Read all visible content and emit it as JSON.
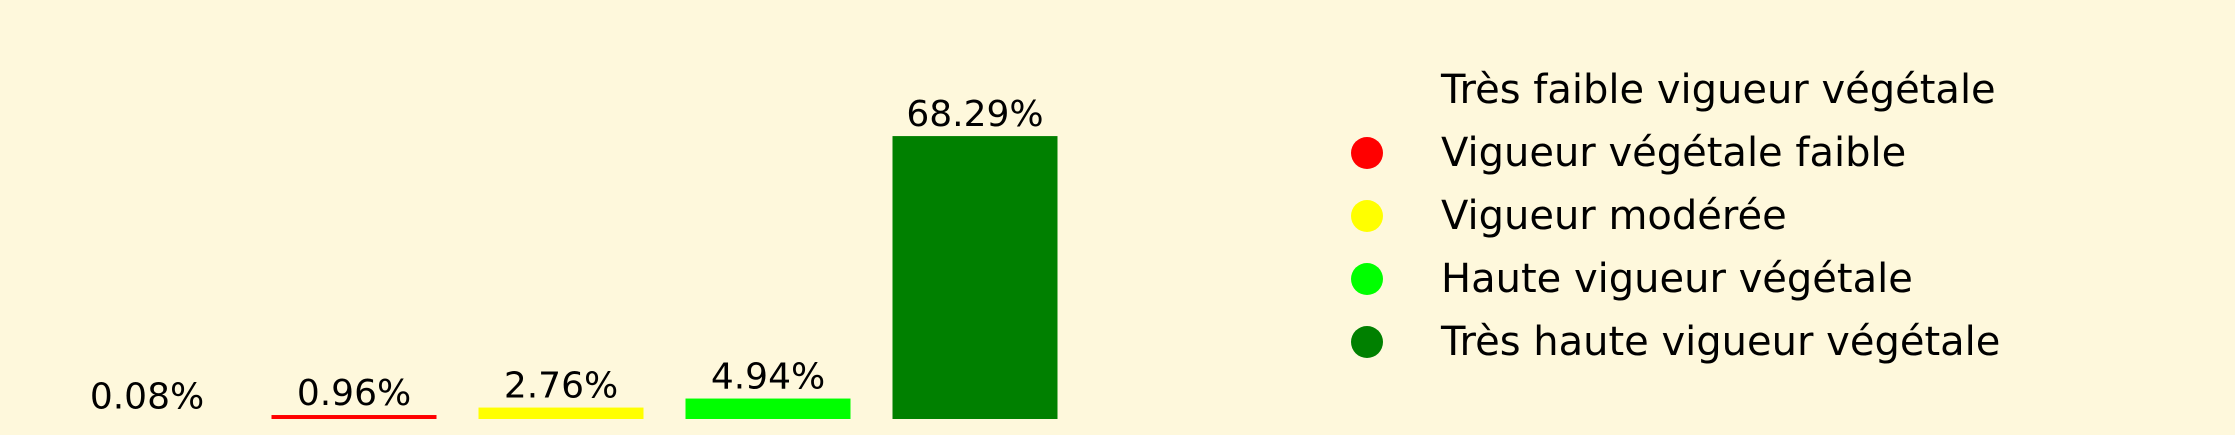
{
  "chart_data": {
    "type": "bar",
    "categories": [
      "Très faible vigueur végétale",
      "Vigueur végétale faible",
      "Vigueur modérée",
      "Haute vigueur végétale",
      "Très haute vigueur végétale"
    ],
    "values": [
      0.08,
      0.96,
      2.76,
      4.94,
      68.29
    ],
    "data_labels": [
      "0.08%",
      "0.96%",
      "2.76%",
      "4.94%",
      "68.29%"
    ],
    "colors": [
      "#fef8dc",
      "#ff0000",
      "#ffff00",
      "#00ff00",
      "#008000"
    ],
    "ylim": [
      0,
      70
    ],
    "grid": false,
    "legend_position": "right"
  },
  "legend": {
    "items": [
      {
        "label": "Très faible vigueur végétale",
        "color": "#fef8dc"
      },
      {
        "label": "Vigueur végétale faible",
        "color": "#ff0000"
      },
      {
        "label": "Vigueur modérée",
        "color": "#ffff00"
      },
      {
        "label": "Haute vigueur végétale",
        "color": "#00ff00"
      },
      {
        "label": "Très haute vigueur végétale",
        "color": "#008000"
      }
    ]
  }
}
